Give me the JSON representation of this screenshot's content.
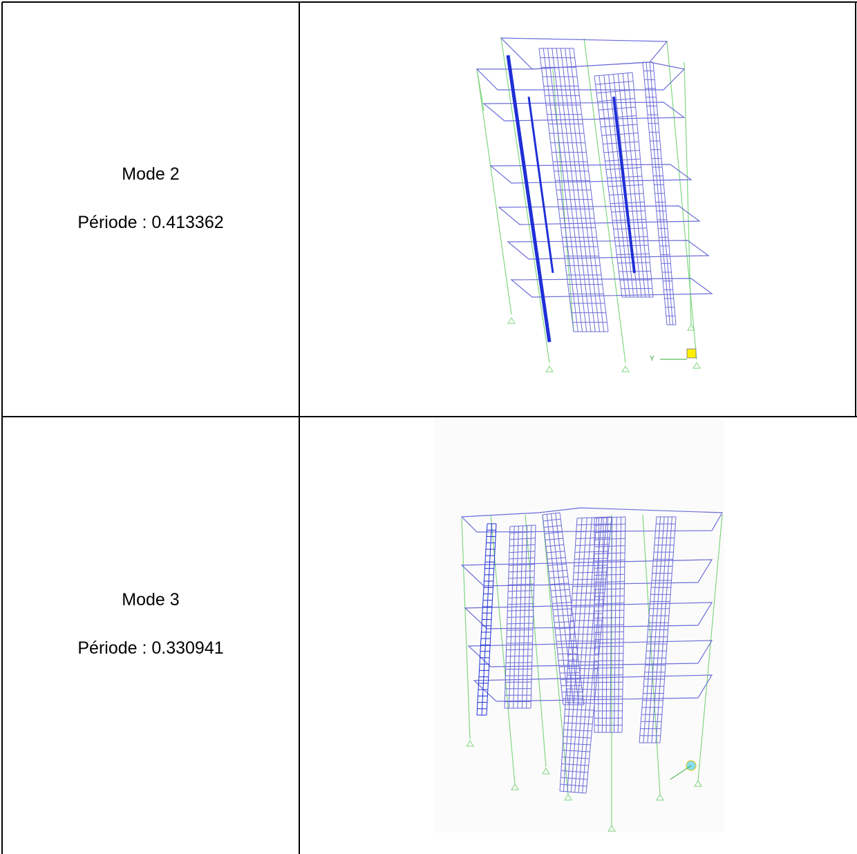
{
  "table": {
    "rows": [
      {
        "mode": "Mode 2",
        "period": "Période : 0.413362",
        "axis_label": "Y"
      },
      {
        "mode": "Mode 3",
        "period": "Période : 0.330941"
      }
    ]
  }
}
